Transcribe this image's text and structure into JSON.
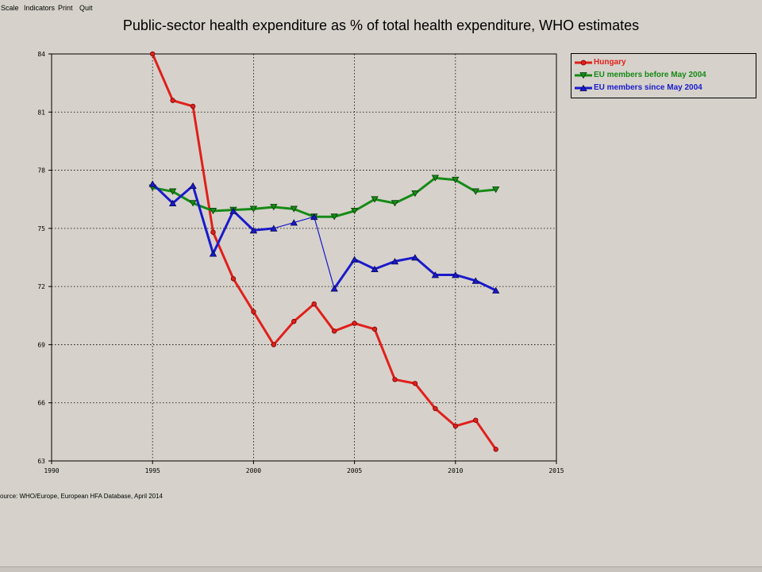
{
  "menu": [
    "Scale",
    "Indicators",
    "Print",
    "Quit"
  ],
  "source": "ource: WHO/Europe, European HFA Database, April 2014",
  "colors": {
    "hungary": "#e0201c",
    "eu_before": "#168a16",
    "eu_since": "#1a1acc"
  },
  "chart_data": {
    "type": "line",
    "title": "Public-sector health expenditure as % of total health expenditure, WHO estimates",
    "xlabel": "",
    "ylabel": "",
    "xlim": [
      1990,
      2015
    ],
    "ylim": [
      63,
      84
    ],
    "xticks": [
      "1990",
      "1995",
      "2000",
      "2005",
      "2010",
      "2015"
    ],
    "yticks": [
      "63",
      "66",
      "69",
      "72",
      "75",
      "78",
      "81",
      "84"
    ],
    "grid": true,
    "legend_position": "top-right",
    "series": [
      {
        "name": "Hungary",
        "color": "#e0201c",
        "marker": "circle",
        "x": [
          1995,
          1996,
          1997,
          1998,
          1999,
          2000,
          2001,
          2002,
          2003,
          2004,
          2005,
          2006,
          2007,
          2008,
          2009,
          2010,
          2011,
          2012
        ],
        "y": [
          84.0,
          81.6,
          81.3,
          74.8,
          72.4,
          70.7,
          69.0,
          70.2,
          71.1,
          69.7,
          70.1,
          69.8,
          67.2,
          67.0,
          65.7,
          64.8,
          65.1,
          63.6
        ]
      },
      {
        "name": "EU members before May 2004",
        "color": "#168a16",
        "marker": "triangle-down",
        "x": [
          1995,
          1996,
          1997,
          1998,
          1999,
          2000,
          2001,
          2002,
          2003,
          2004,
          2005,
          2006,
          2007,
          2008,
          2009,
          2010,
          2011,
          2012
        ],
        "y": [
          77.1,
          76.9,
          76.3,
          75.9,
          75.95,
          76.0,
          76.1,
          76.0,
          75.6,
          75.6,
          75.9,
          76.5,
          76.3,
          76.8,
          77.6,
          77.5,
          76.9,
          77.0
        ]
      },
      {
        "name": "EU members since May 2004",
        "color": "#1a1acc",
        "marker": "triangle-up",
        "x": [
          1995,
          1996,
          1997,
          1998,
          1999,
          2000,
          2001,
          2002,
          2003,
          2004,
          2005,
          2006,
          2007,
          2008,
          2009,
          2010,
          2011,
          2012
        ],
        "y": [
          77.3,
          76.3,
          77.2,
          73.7,
          75.9,
          74.9,
          75.0,
          75.3,
          75.6,
          71.9,
          73.4,
          72.9,
          73.3,
          73.5,
          72.6,
          72.6,
          72.3,
          71.8
        ]
      }
    ]
  }
}
